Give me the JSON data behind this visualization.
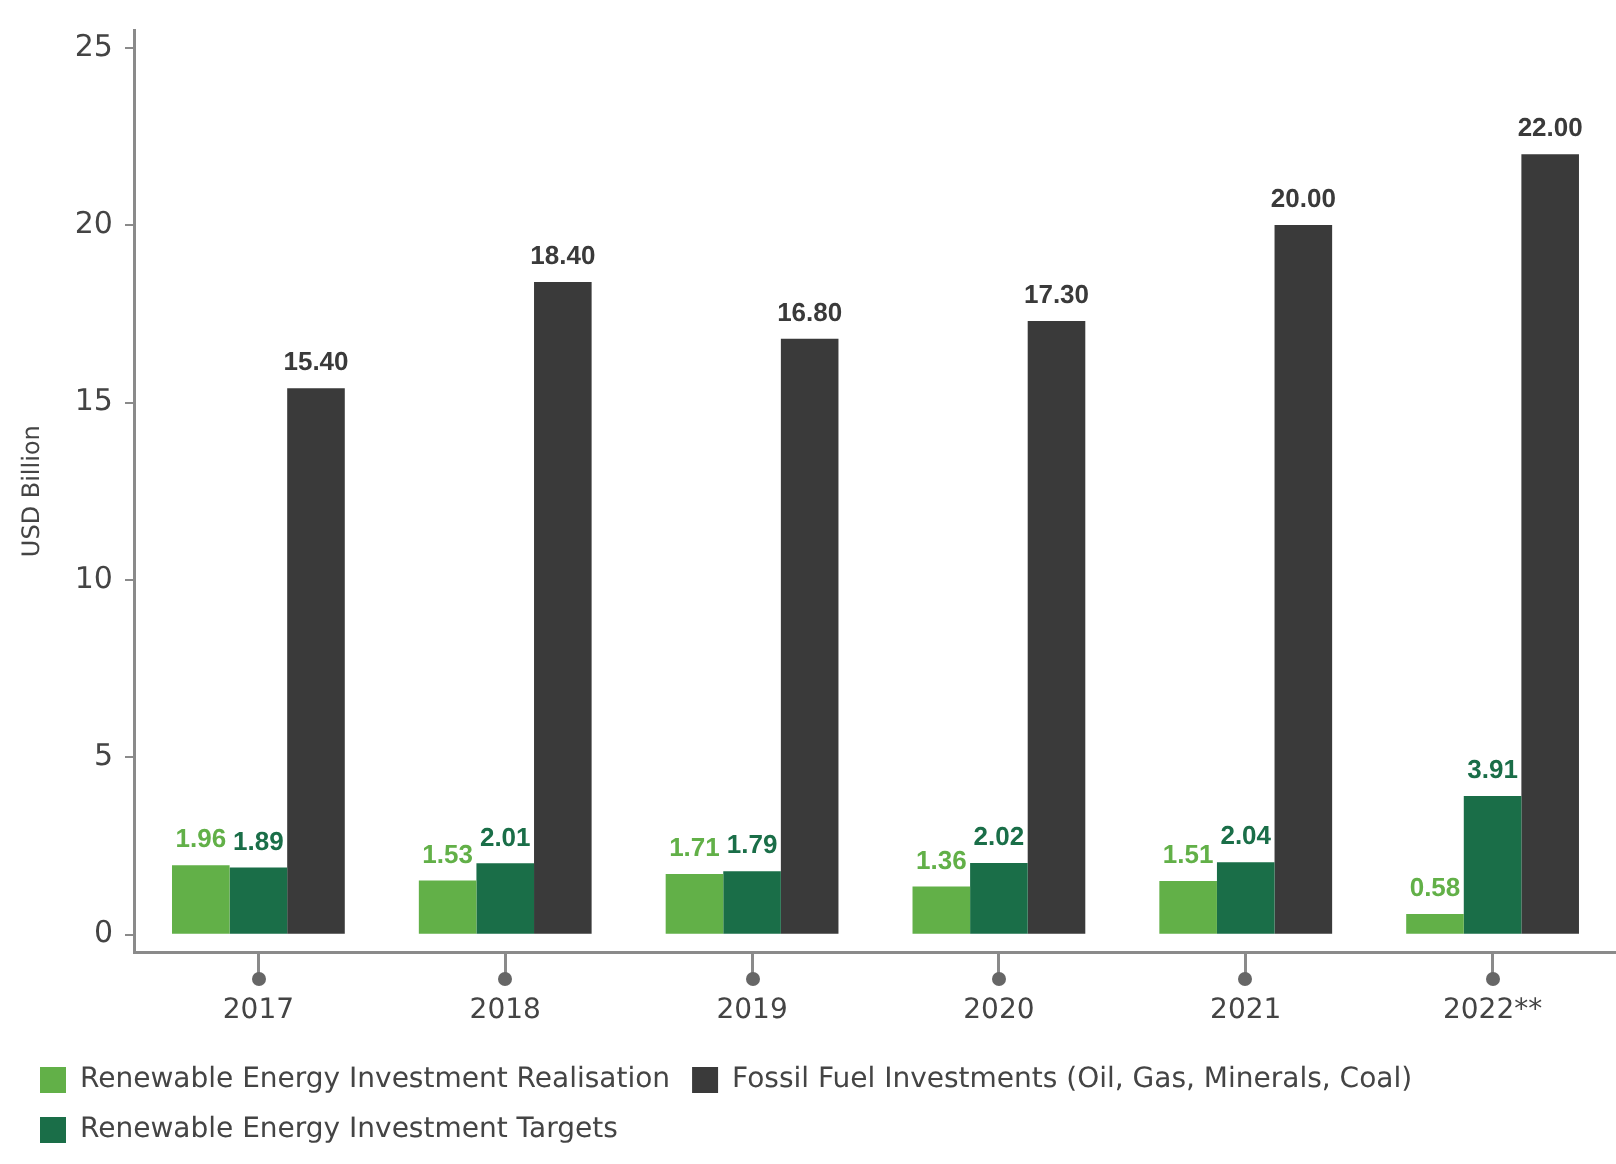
{
  "chart_data": {
    "type": "bar",
    "categories": [
      "2017",
      "2018",
      "2019",
      "2020",
      "2021",
      "2022**"
    ],
    "ylabel": "USD Billion",
    "ylim": [
      -0.5,
      25.5
    ],
    "yticks": [
      0,
      5,
      10,
      15,
      20,
      25
    ],
    "grid": false,
    "legend": "bottom left",
    "series": [
      {
        "name": "Renewable Energy Investment Realisation",
        "color": "#62b048",
        "values": [
          1.96,
          1.53,
          1.71,
          1.36,
          1.51,
          0.58
        ],
        "value_labels": [
          "1.96",
          "1.53",
          "1.71",
          "1.36",
          "1.51",
          "0.58"
        ]
      },
      {
        "name": "Renewable Energy Investment Targets",
        "color": "#1a6e48",
        "values": [
          1.89,
          2.01,
          1.79,
          2.02,
          2.04,
          3.91
        ],
        "value_labels": [
          "1.89",
          "2.01",
          "1.79",
          "2.02",
          "2.04",
          "3.91"
        ]
      },
      {
        "name": "Fossil Fuel Investments (Oil, Gas, Minerals, Coal)",
        "color": "#3a3a3a",
        "values": [
          15.4,
          18.4,
          16.8,
          17.3,
          20,
          22
        ],
        "value_labels": [
          "15.40",
          "18.40",
          "16.80",
          "17.30",
          "20.00",
          "22.00"
        ]
      }
    ]
  }
}
